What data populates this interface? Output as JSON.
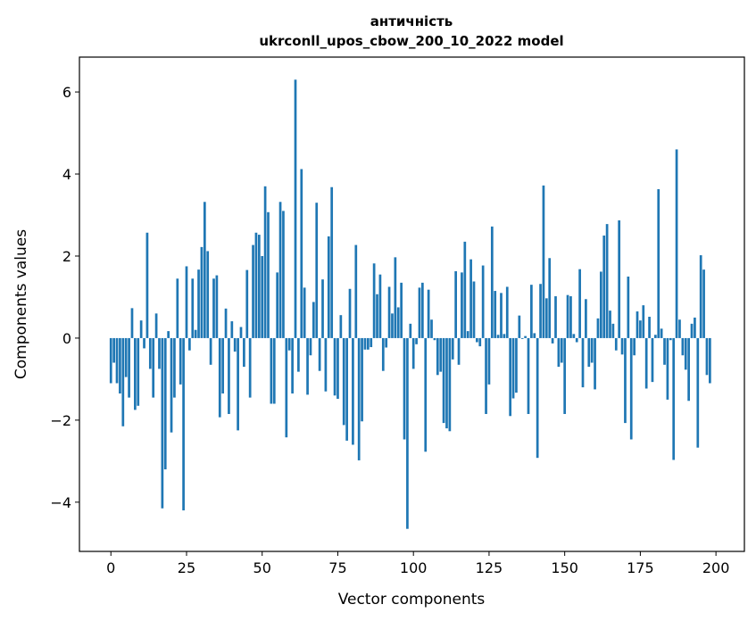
{
  "chart_data": {
    "type": "bar",
    "title": "античність",
    "subtitle": "ukrconll_upos_cbow_200_10_2022 model",
    "xlabel": "Vector components",
    "ylabel": "Components values",
    "xlim": [
      -10.4,
      209.4
    ],
    "ylim": [
      -5.2,
      6.85
    ],
    "xticks": [
      0,
      25,
      50,
      75,
      100,
      125,
      150,
      175,
      200
    ],
    "yticks": [
      -4,
      -2,
      0,
      2,
      4,
      6
    ],
    "ytick_labels": [
      "−4",
      "−2",
      "0",
      "2",
      "4",
      "6"
    ],
    "grid": false,
    "color": "#1f77b4",
    "values": [
      -1.1,
      -0.6,
      -1.1,
      -1.35,
      -2.15,
      -0.95,
      -1.45,
      0.73,
      -1.75,
      -1.65,
      0.43,
      -0.25,
      2.57,
      -0.75,
      -1.45,
      0.6,
      -0.75,
      -4.15,
      -3.2,
      0.17,
      -2.3,
      -1.45,
      1.45,
      -1.13,
      -4.2,
      1.75,
      -0.3,
      1.45,
      0.2,
      1.67,
      2.22,
      3.32,
      2.12,
      -0.65,
      1.45,
      1.53,
      -1.93,
      -1.35,
      0.72,
      -1.85,
      0.41,
      -0.33,
      -2.25,
      0.27,
      -0.7,
      1.66,
      -1.45,
      2.27,
      2.57,
      2.52,
      2.0,
      3.7,
      3.07,
      -1.6,
      -1.6,
      1.6,
      3.32,
      3.1,
      -2.42,
      -0.3,
      -1.35,
      6.3,
      -0.82,
      4.12,
      1.23,
      -1.38,
      -0.42,
      0.88,
      3.3,
      -0.8,
      1.43,
      -1.3,
      2.48,
      3.68,
      -1.4,
      -1.48,
      0.56,
      -2.12,
      -2.5,
      1.2,
      -2.6,
      2.27,
      -2.98,
      -2.03,
      -0.28,
      -0.28,
      -0.22,
      1.82,
      1.07,
      1.55,
      -0.8,
      -0.23,
      1.25,
      0.6,
      1.97,
      0.75,
      1.35,
      -2.47,
      -4.65,
      0.35,
      -0.75,
      -0.15,
      1.23,
      1.35,
      -2.77,
      1.18,
      0.45,
      -0.05,
      -0.9,
      -0.82,
      -2.07,
      -2.2,
      -2.27,
      -0.52,
      1.63,
      -0.65,
      1.6,
      2.35,
      0.17,
      1.92,
      1.38,
      -0.1,
      -0.2,
      1.77,
      -1.85,
      -1.13,
      2.72,
      1.15,
      0.08,
      1.1,
      0.1,
      1.25,
      -1.9,
      -1.47,
      -1.33,
      0.55,
      -0.02,
      0.05,
      -1.85,
      1.3,
      0.12,
      -2.92,
      1.32,
      3.72,
      0.97,
      1.95,
      -0.13,
      1.02,
      -0.7,
      -0.6,
      -1.85,
      1.05,
      1.02,
      0.1,
      -0.1,
      1.68,
      -1.2,
      0.95,
      -0.7,
      -0.6,
      -1.25,
      0.48,
      1.62,
      2.5,
      2.78,
      0.67,
      0.35,
      -0.3,
      2.87,
      -0.4,
      -2.07,
      1.5,
      -2.47,
      -0.42,
      0.65,
      0.43,
      0.8,
      -1.23,
      0.52,
      -1.07,
      0.08,
      3.63,
      0.23,
      -0.65,
      -1.5,
      -0.05,
      -2.97,
      4.6,
      0.45,
      -0.42,
      -0.77,
      -1.53,
      0.35,
      0.5,
      -2.67,
      2.02,
      1.67,
      -0.9,
      -1.1
    ]
  }
}
